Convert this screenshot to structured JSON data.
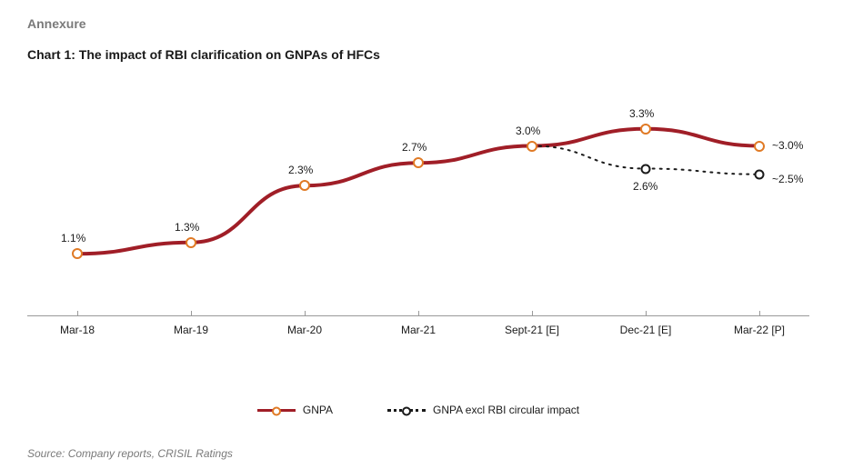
{
  "header": {
    "section_label": "Annexure",
    "chart_title": "Chart 1: The impact of RBI clarification on GNPAs of HFCs"
  },
  "chart": {
    "type": "line",
    "background_color": "#ffffff",
    "axis_color": "#999999",
    "text_color": "#1a1a1a",
    "label_fontsize": 12,
    "title_fontsize": 14,
    "ylim": [
      0,
      4.0
    ],
    "x_categories": [
      "Mar-18",
      "Mar-19",
      "Mar-20",
      "Mar-21",
      "Sept-21 [E]",
      "Dec-21 [E]",
      "Mar-22 [P]"
    ],
    "series": [
      {
        "name": "GNPA",
        "color": "#a01e27",
        "marker_border": "#e07a25",
        "marker_fill": "#ffffff",
        "line_width": 4,
        "line_style": "solid",
        "marker_size": 12,
        "values": [
          1.1,
          1.3,
          2.3,
          2.7,
          3.0,
          3.3,
          3.0
        ],
        "labels": [
          "1.1%",
          "1.3%",
          "2.3%",
          "2.7%",
          "3.0%",
          "3.3%",
          "~3.0%"
        ]
      },
      {
        "name": "GNPA excl RBI circular impact",
        "color": "#1a1a1a",
        "marker_border": "#1a1a1a",
        "marker_fill": "#ffffff",
        "line_width": 2,
        "line_style": "dotted",
        "marker_size": 11,
        "start_index": 4,
        "values": [
          3.0,
          2.6,
          2.5
        ],
        "labels": [
          "",
          "2.6%",
          "~2.5%"
        ]
      }
    ]
  },
  "source": "Source: Company reports, CRISIL Ratings"
}
